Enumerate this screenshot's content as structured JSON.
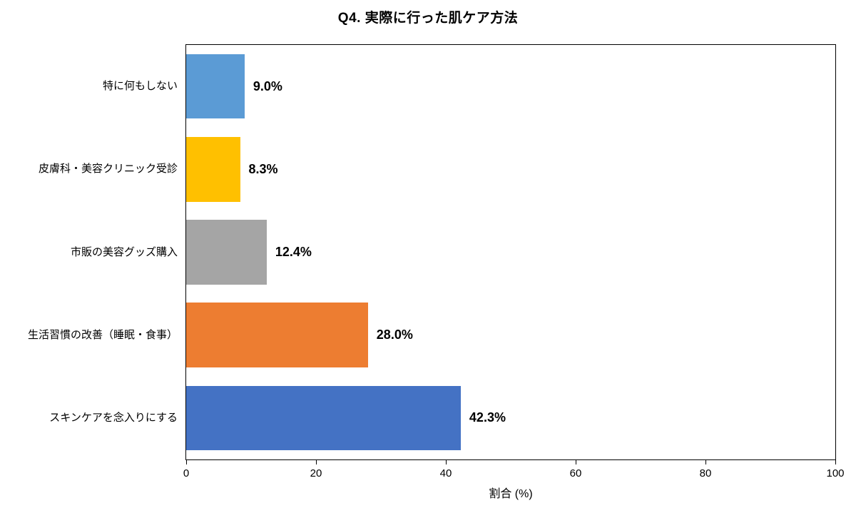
{
  "chart_data": {
    "type": "bar",
    "orientation": "horizontal",
    "title": "Q4. 実際に行った肌ケア方法",
    "xlabel": "割合 (%)",
    "ylabel": "",
    "xlim": [
      0,
      100
    ],
    "xticks": [
      0,
      20,
      40,
      60,
      80,
      100
    ],
    "grid": false,
    "legend": false,
    "categories_top_to_bottom": [
      "特に何もしない",
      "皮膚科・美容クリニック受診",
      "市販の美容グッズ購入",
      "生活習慣の改善（睡眠・食事）",
      "スキンケアを念入りにする"
    ],
    "values": [
      9.0,
      8.3,
      12.4,
      28.0,
      42.3
    ],
    "value_labels": [
      "9.0%",
      "8.3%",
      "12.4%",
      "28.0%",
      "42.3%"
    ],
    "colors": [
      "#5B9BD5",
      "#FFC000",
      "#A5A5A5",
      "#ED7D31",
      "#4472C4"
    ]
  }
}
